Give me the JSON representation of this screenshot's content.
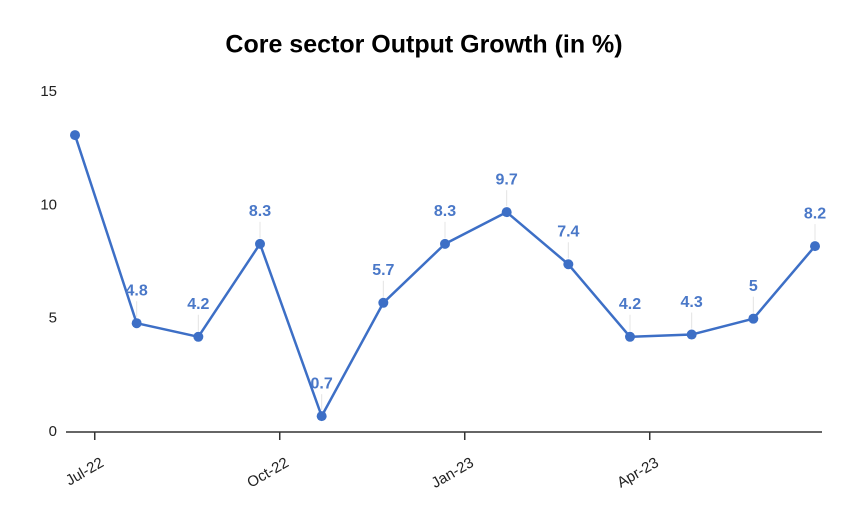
{
  "chart_data": {
    "type": "line",
    "title": "Core sector Output Growth (in %)",
    "categories": [
      null,
      "Jul-22",
      null,
      null,
      "Oct-22",
      null,
      null,
      "Jan-23",
      null,
      null,
      "Apr-23",
      null,
      null
    ],
    "series": [
      {
        "name": "Core sector Output Growth",
        "color": "#3d6fc6",
        "values": [
          13.1,
          4.8,
          4.2,
          8.3,
          0.7,
          5.7,
          8.3,
          9.7,
          7.4,
          4.2,
          4.3,
          5,
          8.2
        ],
        "value_labels": [
          null,
          "4.8",
          "4.2",
          "8.3",
          "0.7",
          "5.7",
          "8.3",
          "9.7",
          "7.4",
          "4.2",
          "4.3",
          "5",
          "8.2"
        ]
      }
    ],
    "ylim": [
      0,
      15
    ],
    "yticks": [
      0,
      5,
      10,
      15
    ],
    "grid": false
  }
}
